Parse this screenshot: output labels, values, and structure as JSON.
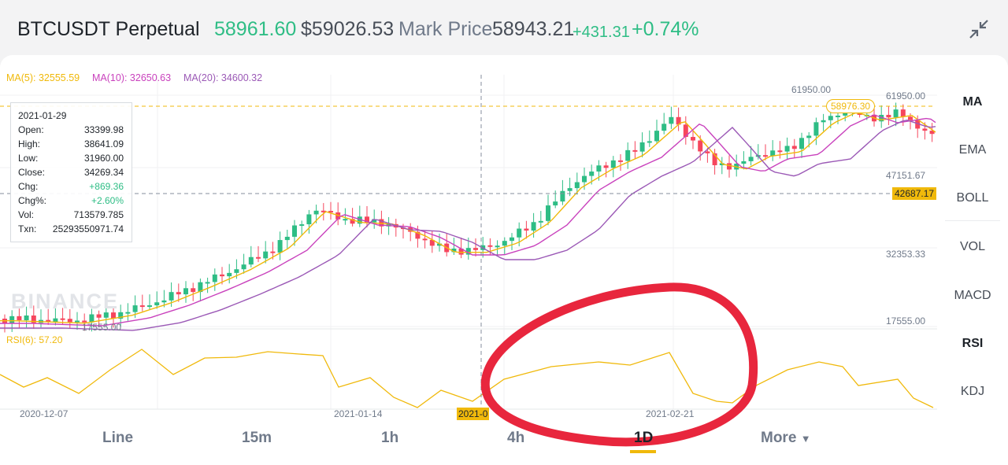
{
  "header": {
    "symbol": "BTCUSDT Perpetual",
    "last_price": "58961.60",
    "usd_price": "$59026.53",
    "mark_price_label": "Mark Price",
    "mark_price": "58943.21",
    "change": "+431.31",
    "change_pct": "+0.74%"
  },
  "indicators": {
    "ma5": "MA(5): 32555.59",
    "ma10": "MA(10): 32650.63",
    "ma20": "MA(20): 34600.32",
    "rsi": "RSI(6): 57.20"
  },
  "tooltip": {
    "date": "2021-01-29",
    "rows": [
      {
        "label": "Open:",
        "value": "33399.98"
      },
      {
        "label": "High:",
        "value": "38641.09"
      },
      {
        "label": "Low:",
        "value": "31960.00"
      },
      {
        "label": "Close:",
        "value": "34269.34"
      },
      {
        "label": "Chg:",
        "value": "+869.36"
      },
      {
        "label": "Chg%:",
        "value": "+2.60%"
      },
      {
        "label": "Vol:",
        "value": "713579.785"
      },
      {
        "label": "Txn:",
        "value": "25293550971.74"
      }
    ]
  },
  "price_axis": {
    "high_marker": "61950.00",
    "high_marker_left": "61950.00",
    "current_tag": "58976.30",
    "p1": "47151.67",
    "crosshair_tag": "42687.17",
    "p2": "32353.33",
    "p3": "17555.00",
    "low_marker": "17555.00"
  },
  "date_axis": {
    "d1": "2020-12-07",
    "d2": "2021-01-14",
    "d3": "2021-0",
    "d4": "2021-02-21"
  },
  "watermark": "BINANCE",
  "side_menu": [
    "MA",
    "EMA",
    "BOLL",
    "VOL",
    "MACD",
    "RSI",
    "KDJ"
  ],
  "timeframes": [
    "Line",
    "15m",
    "1h",
    "4h",
    "1D",
    "More"
  ],
  "colors": {
    "up": "#2ebd85",
    "down": "#f6465d",
    "ma5": "#f0b90b",
    "ma10": "#c942bd",
    "ma20": "#9b59b6",
    "annotation": "#e8263d"
  },
  "icons": {
    "collapse": "collapse-arrows-icon",
    "more": "caret-down-icon"
  }
}
